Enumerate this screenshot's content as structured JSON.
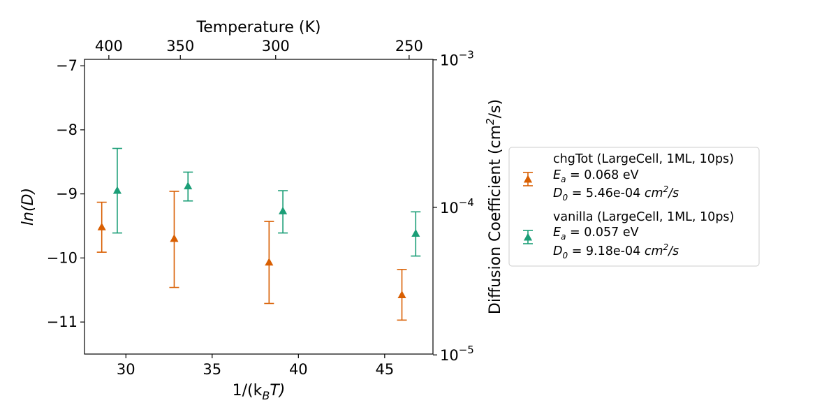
{
  "chart_data": {
    "type": "scatter",
    "x_label_base": "1/(k",
    "x_label_sub": "B",
    "x_label_end": "T)",
    "y_label": "ln(D)",
    "top_label": "Temperature (K)",
    "right_label_base": "Diffusion Coefficient (cm",
    "right_label_sup": "2",
    "right_label_end": "/s)",
    "xlim": [
      27.6,
      47.8
    ],
    "ylim": [
      -11.5,
      -6.9
    ],
    "x_ticks": [
      30,
      35,
      40,
      45
    ],
    "y_ticks": [
      -7,
      -8,
      -9,
      -10,
      -11
    ],
    "top_ticks": [
      {
        "label": "400",
        "value": 400
      },
      {
        "label": "350",
        "value": 350
      },
      {
        "label": "300",
        "value": 300
      },
      {
        "label": "250",
        "value": 250
      }
    ],
    "right_ticks": [
      {
        "base": "10",
        "exp": "−3",
        "value": -6.9078
      },
      {
        "base": "10",
        "exp": "−4",
        "value": -9.2103
      },
      {
        "base": "10",
        "exp": "−5",
        "value": -11.5129
      }
    ],
    "series": [
      {
        "name": "chgTot (LargeCell, 1ML, 10ps)",
        "color": "#d95f02",
        "ea_value": "0.068 eV",
        "d0_value": "5.46e-04",
        "points": [
          {
            "x": 28.6,
            "y": -9.52,
            "ylow": -9.91,
            "yhigh": -9.13
          },
          {
            "x": 32.8,
            "y": -9.7,
            "ylow": -10.46,
            "yhigh": -8.96
          },
          {
            "x": 38.3,
            "y": -10.07,
            "ylow": -10.71,
            "yhigh": -9.43
          },
          {
            "x": 46.0,
            "y": -10.58,
            "ylow": -10.97,
            "yhigh": -10.18
          }
        ]
      },
      {
        "name": "vanilla (LargeCell, 1ML, 10ps)",
        "color": "#1b9e77",
        "ea_value": "0.057 eV",
        "d0_value": "9.18e-04",
        "points": [
          {
            "x": 29.5,
            "y": -8.95,
            "ylow": -9.61,
            "yhigh": -8.29
          },
          {
            "x": 33.6,
            "y": -8.88,
            "ylow": -9.11,
            "yhigh": -8.66
          },
          {
            "x": 39.1,
            "y": -9.27,
            "ylow": -9.61,
            "yhigh": -8.95
          },
          {
            "x": 46.8,
            "y": -9.62,
            "ylow": -9.97,
            "yhigh": -9.28
          }
        ]
      }
    ],
    "legend": {
      "position": "right",
      "ea_label_base": "E",
      "ea_label_sub": "a",
      "d0_label_base": "D",
      "d0_label_sub": "0",
      "unit_base": "cm",
      "unit_sup": "2",
      "unit_end": "/s"
    }
  }
}
